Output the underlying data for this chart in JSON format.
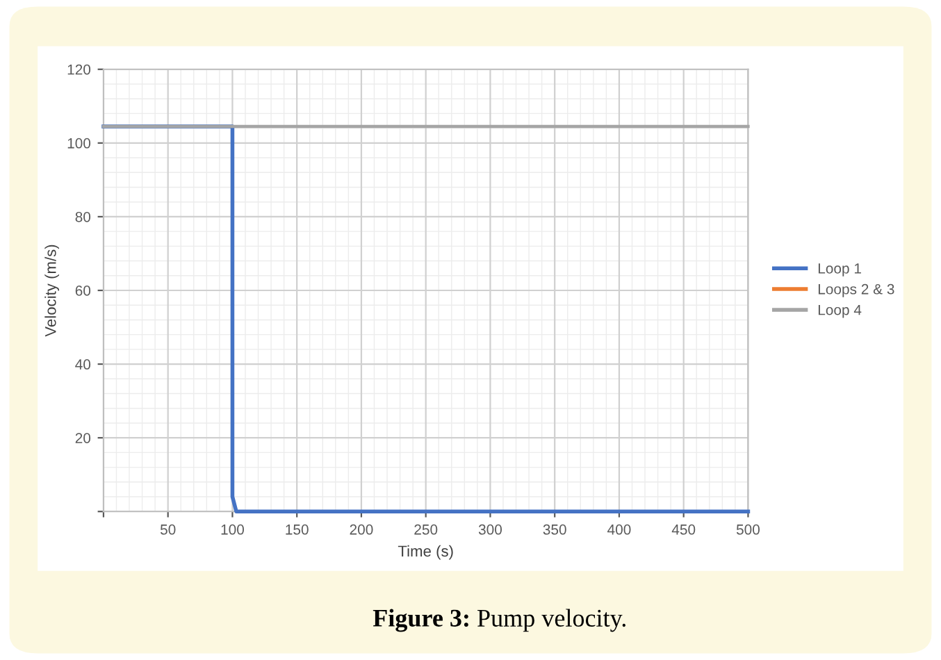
{
  "chart_data": {
    "type": "line",
    "xlabel": "Time (s)",
    "ylabel": "Velocity (m/s)",
    "xlim": [
      0,
      500
    ],
    "ylim": [
      0,
      120
    ],
    "xticks": [
      {
        "value": 0,
        "label": null
      },
      50,
      100,
      150,
      200,
      250,
      300,
      350,
      400,
      450,
      500
    ],
    "yticks": [
      {
        "value": 0,
        "label": null
      },
      20,
      40,
      60,
      80,
      100,
      120
    ],
    "grid": true,
    "legend": "right",
    "marker": "none",
    "line_style": "solid",
    "series": [
      {
        "name": "Loop 1",
        "color": "#4472c4",
        "x": [
          0,
          100,
          100,
          103,
          500
        ],
        "values": [
          104.5,
          104.5,
          4,
          0,
          0
        ]
      },
      {
        "name": "Loops 2 & 3",
        "color": "#ed7d31"
      },
      {
        "name": "Loop 4",
        "color": "#a5a5a5",
        "x": [
          0,
          500
        ],
        "values": [
          104.5,
          104.5
        ]
      }
    ],
    "annotations": [
      "Figure 3: Pump velocity."
    ]
  }
}
